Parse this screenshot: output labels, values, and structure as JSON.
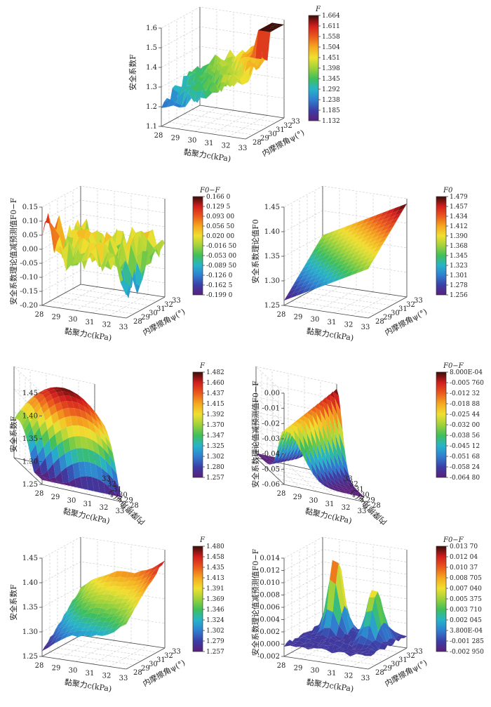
{
  "figure": {
    "panels": [
      {
        "id": "a",
        "zlabel": "安全系数F",
        "xlabel": "黏聚力c(kPa)",
        "ylabel": "内摩擦角ψ(°)",
        "zticks": [
          "1.1",
          "1.2",
          "1.3",
          "1.4",
          "1.5",
          "1.6"
        ],
        "xticks": [
          "28",
          "29",
          "30",
          "31",
          "32",
          "33"
        ],
        "yticks": [
          "28",
          "29",
          "30",
          "31",
          "32",
          "33"
        ],
        "cb_title": "F",
        "cb_ticks": [
          "1.664",
          "1.611",
          "1.558",
          "1.504",
          "1.451",
          "1.398",
          "1.345",
          "1.292",
          "1.238",
          "1.185",
          "1.132"
        ]
      },
      {
        "id": "b",
        "zlabel": "安全系数理论值减预测值F0−F",
        "xlabel": "黏聚力c(kPa)",
        "ylabel": "内摩擦角ψ(°)",
        "zticks": [
          "-0.20",
          "-0.15",
          "-0.10",
          "-0.05",
          "0.00",
          "0.05",
          "0.10",
          "0.15"
        ],
        "xticks": [
          "28",
          "29",
          "30",
          "31",
          "32",
          "33"
        ],
        "yticks": [
          "28",
          "29",
          "30",
          "31",
          "32",
          "33"
        ],
        "cb_title": "F0−F",
        "cb_ticks": [
          "0.166 0",
          "0.129 5",
          "0.093 00",
          "0.056 50",
          "0.020 00",
          "-0.016 50",
          "-0.053 00",
          "-0.089 50",
          "-0.126 0",
          "-0.162 5",
          "-0.199 0"
        ]
      },
      {
        "id": "c",
        "zlabel": "安全系数理论值F0",
        "xlabel": "黏聚力c(kPa)",
        "ylabel": "内摩擦角ψ(°)",
        "zticks": [
          "1.25",
          "1.30",
          "1.35",
          "1.40",
          "1.45"
        ],
        "xticks": [
          "28",
          "29",
          "30",
          "31",
          "32",
          "33"
        ],
        "yticks": [
          "28",
          "29",
          "30",
          "31",
          "32",
          "33"
        ],
        "cb_title": "F0",
        "cb_ticks": [
          "1.479",
          "1.457",
          "1.434",
          "1.412",
          "1.390",
          "1.368",
          "1.345",
          "1.323",
          "1.301",
          "1.278",
          "1.256"
        ]
      },
      {
        "id": "d",
        "zlabel": "安全系数F",
        "xlabel": "黏聚力c(kPa)",
        "ylabel": "内摩擦角ψ(°)",
        "zticks": [
          "1.25",
          "1.30",
          "1.35",
          "1.40",
          "1.45"
        ],
        "xticks": [
          "28",
          "29",
          "30",
          "31",
          "32",
          "33"
        ],
        "yticks": [
          "28",
          "29",
          "30",
          "31",
          "32",
          "33"
        ],
        "cb_title": "F",
        "cb_ticks": [
          "1.482",
          "1.460",
          "1.437",
          "1.415",
          "1.392",
          "1.370",
          "1.347",
          "1.325",
          "1.302",
          "1.280",
          "1.257"
        ]
      },
      {
        "id": "e",
        "zlabel": "安全系数理论值减预测值F0−F",
        "xlabel": "黏聚力c(kPa)",
        "ylabel": "内摩擦角ψ(°)",
        "zticks": [
          "-0.06",
          "-0.05",
          "-0.04",
          "-0.03",
          "-0.02",
          "-0.01",
          "0.00"
        ],
        "xticks": [
          "28",
          "29",
          "30",
          "31",
          "32",
          "33"
        ],
        "yticks": [
          "28",
          "29",
          "30",
          "31",
          "32",
          "33"
        ],
        "cb_title": "F0−F",
        "cb_ticks": [
          "8.000E-04",
          "-0.005 760",
          "-0.012 32",
          "-0.018 88",
          "-0.025 44",
          "-0.032 00",
          "-0.038 56",
          "-0.045 12",
          "-0.051 68",
          "-0.058 24",
          "-0.064 80"
        ]
      },
      {
        "id": "f",
        "zlabel": "安全系数F",
        "xlabel": "黏聚力c(kPa)",
        "ylabel": "内摩擦角ψ(°)",
        "zticks": [
          "1.25",
          "1.30",
          "1.35",
          "1.40",
          "1.45"
        ],
        "xticks": [
          "28",
          "29",
          "30",
          "31",
          "32",
          "33"
        ],
        "yticks": [
          "28",
          "29",
          "30",
          "31",
          "32",
          "33"
        ],
        "cb_title": "F",
        "cb_ticks": [
          "1.480",
          "1.458",
          "1.435",
          "1.413",
          "1.391",
          "1.369",
          "1.346",
          "1.324",
          "1.302",
          "1.279",
          "1.257"
        ]
      },
      {
        "id": "g",
        "zlabel": "安全系数理论值减预测值F0−F",
        "xlabel": "黏聚力c(kPa)",
        "ylabel": "内摩擦角ψ(°)",
        "zticks": [
          "-0.002",
          "0.000",
          "0.002",
          "0.004",
          "0.006",
          "0.008",
          "0.010",
          "0.012",
          "0.014"
        ],
        "xticks": [
          "28",
          "29",
          "30",
          "31",
          "32",
          "33"
        ],
        "yticks": [
          "28",
          "29",
          "30",
          "31",
          "32",
          "33"
        ],
        "cb_title": "F0−F",
        "cb_ticks": [
          "0.013 70",
          "0.012 04",
          "0.010 37",
          "0.008 705",
          "0.007 040",
          "0.005 375",
          "0.003 710",
          "0.002 045",
          "3.800E-04",
          "-0.001 285",
          "-0.002 950"
        ]
      }
    ],
    "colormap": [
      "#5a1f7a",
      "#3b3fa6",
      "#2f7fd0",
      "#27b4c9",
      "#3fbf5a",
      "#9fd23a",
      "#f0e030",
      "#f5a81e",
      "#ea5a1c",
      "#d21e1e",
      "#3a0d08"
    ]
  },
  "chart_data": [
    {
      "type": "surface",
      "title": "",
      "xlabel": "黏聚力c(kPa)",
      "ylabel": "内摩擦角ψ(°)",
      "zlabel": "安全系数F",
      "x_range": [
        28,
        33
      ],
      "y_range": [
        28,
        33
      ],
      "z_range": [
        1.1,
        1.7
      ],
      "legend": "colorbar-right",
      "grid": true,
      "shape": "ridge-rising",
      "z_min": 1.132,
      "z_max": 1.664
    },
    {
      "type": "surface",
      "title": "",
      "xlabel": "黏聚力c(kPa)",
      "ylabel": "内摩擦角ψ(°)",
      "zlabel": "安全系数理论值减预测值F0−F",
      "x_range": [
        28,
        33
      ],
      "y_range": [
        28,
        33
      ],
      "z_range": [
        -0.2,
        0.17
      ],
      "legend": "colorbar-right",
      "grid": true,
      "shape": "noisy-flat",
      "z_min": -0.199,
      "z_max": 0.166
    },
    {
      "type": "surface",
      "title": "",
      "xlabel": "黏聚力c(kPa)",
      "ylabel": "内摩擦角ψ(°)",
      "zlabel": "安全系数理论值F0",
      "x_range": [
        28,
        33
      ],
      "y_range": [
        28,
        33
      ],
      "z_range": [
        1.25,
        1.48
      ],
      "legend": "colorbar-right",
      "grid": true,
      "shape": "plane",
      "z_min": 1.256,
      "z_max": 1.479
    },
    {
      "type": "surface",
      "title": "",
      "xlabel": "黏聚力c(kPa)",
      "ylabel": "内摩擦角ψ(°)",
      "zlabel": "安全系数F",
      "x_range": [
        28,
        33
      ],
      "y_range": [
        28,
        33
      ],
      "z_range": [
        1.25,
        1.48
      ],
      "legend": "colorbar-right",
      "grid": true,
      "shape": "dome",
      "z_min": 1.257,
      "z_max": 1.482
    },
    {
      "type": "surface",
      "title": "",
      "xlabel": "黏聚力c(kPa)",
      "ylabel": "内摩擦角ψ(°)",
      "zlabel": "安全系数理论值减预测值F0−F",
      "x_range": [
        28,
        33
      ],
      "y_range": [
        28,
        33
      ],
      "z_range": [
        -0.065,
        0.0008
      ],
      "legend": "colorbar-right",
      "grid": true,
      "shape": "ridge",
      "z_min": -0.0648,
      "z_max": 0.0008
    },
    {
      "type": "surface",
      "title": "",
      "xlabel": "黏聚力c(kPa)",
      "ylabel": "内摩擦角ψ(°)",
      "zlabel": "安全系数F",
      "x_range": [
        28,
        33
      ],
      "y_range": [
        28,
        33
      ],
      "z_range": [
        1.25,
        1.48
      ],
      "legend": "colorbar-right",
      "grid": true,
      "shape": "plane-wavy",
      "z_min": 1.257,
      "z_max": 1.48
    },
    {
      "type": "surface",
      "title": "",
      "xlabel": "黏聚力c(kPa)",
      "ylabel": "内摩擦角ψ(°)",
      "zlabel": "安全系数理论值减预测值F0−F",
      "x_range": [
        28,
        33
      ],
      "y_range": [
        28,
        33
      ],
      "z_range": [
        -0.003,
        0.0137
      ],
      "legend": "colorbar-right",
      "grid": true,
      "shape": "twin-peaks",
      "z_min": -0.00295,
      "z_max": 0.0137
    }
  ]
}
